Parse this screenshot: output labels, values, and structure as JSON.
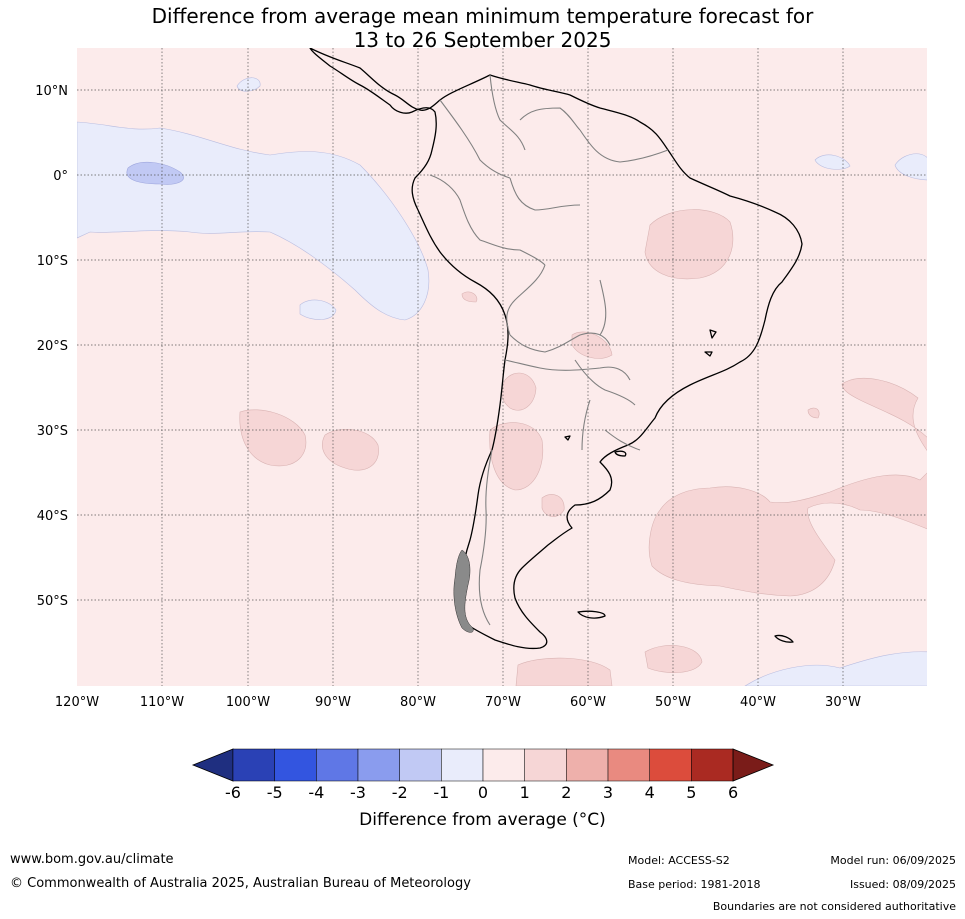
{
  "title_line1": "Difference from average mean minimum temperature forecast for",
  "title_line2": "13 to 26 September 2025",
  "lon_labels": [
    "120°W",
    "110°W",
    "100°W",
    "90°W",
    "80°W",
    "70°W",
    "60°W",
    "50°W",
    "40°W",
    "30°W"
  ],
  "lat_labels": [
    "10°N",
    "0°",
    "10°S",
    "20°S",
    "30°S",
    "40°S",
    "50°S"
  ],
  "colorbar": {
    "ticks": [
      "-6",
      "-5",
      "-4",
      "-3",
      "-2",
      "-1",
      "0",
      "1",
      "2",
      "3",
      "4",
      "5",
      "6"
    ],
    "colors": [
      "#1f2f80",
      "#2a41b5",
      "#3355e0",
      "#5f77e6",
      "#8a9cee",
      "#c1c9f4",
      "#e9ecfb",
      "#fcebeb",
      "#f6d6d6",
      "#eeb0ab",
      "#e98a80",
      "#dc4c3c",
      "#aa2a22",
      "#7a1c19"
    ],
    "label": "Difference from average (°C)"
  },
  "footer": {
    "website": "www.bom.gov.au/climate",
    "copyright": "© Commonwealth of Australia 2025, Australian Bureau of Meteorology",
    "model": "Model: ACCESS-S2",
    "base_period": "Base period: 1981-2018",
    "model_run": "Model run: 06/09/2025",
    "issued": "Issued: 08/09/2025",
    "disclaimer": "Boundaries are not considered authoritative"
  }
}
